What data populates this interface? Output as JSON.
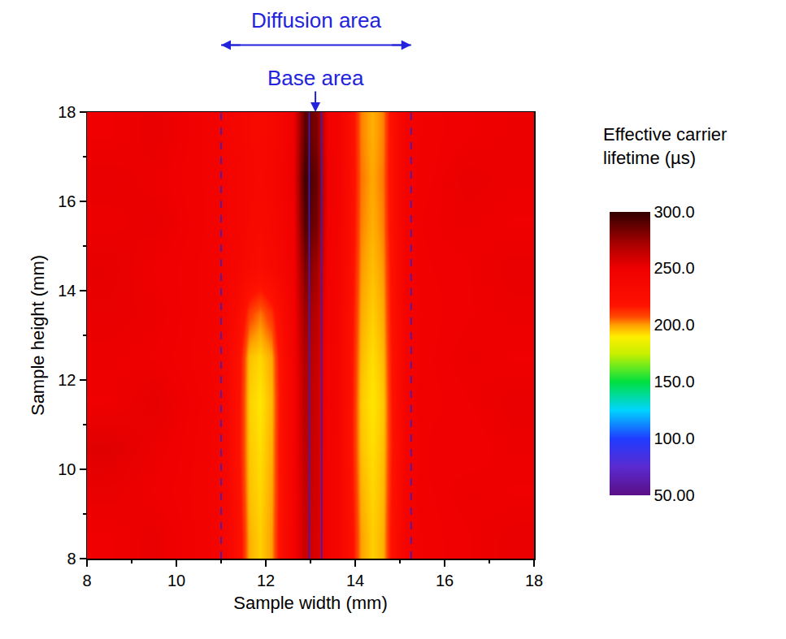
{
  "chart_data": {
    "type": "heatmap",
    "x_label": "Sample width (mm)",
    "y_label": "Sample height (mm)",
    "xlim": [
      8,
      18
    ],
    "xticks": [
      8,
      10,
      12,
      14,
      16,
      18
    ],
    "ylim": [
      8,
      18
    ],
    "yticks": [
      8,
      10,
      12,
      14,
      16,
      18
    ],
    "x_edges": [
      8,
      9,
      10,
      10.5,
      11,
      11.25,
      11.5,
      11.75,
      12,
      12.25,
      12.5,
      12.75,
      13,
      13.25,
      13.5,
      13.75,
      14,
      14.25,
      14.5,
      14.75,
      15,
      15.25,
      15.5,
      16,
      17,
      18
    ],
    "y_edges": [
      8,
      9,
      10,
      11,
      12,
      13,
      14,
      15,
      16,
      17,
      18
    ],
    "z": [
      [
        250,
        252,
        248,
        244,
        238,
        225,
        198,
        194,
        200,
        228,
        246,
        262,
        258,
        246,
        240,
        226,
        200,
        194,
        198,
        226,
        242,
        246,
        248,
        250,
        252
      ],
      [
        252,
        250,
        247,
        243,
        239,
        222,
        196,
        193,
        199,
        226,
        245,
        264,
        260,
        245,
        241,
        224,
        198,
        193,
        197,
        224,
        243,
        247,
        249,
        251,
        250
      ],
      [
        255,
        251,
        248,
        244,
        238,
        220,
        195,
        192,
        198,
        227,
        246,
        266,
        261,
        246,
        240,
        222,
        196,
        192,
        196,
        222,
        242,
        246,
        250,
        249,
        251
      ],
      [
        250,
        253,
        249,
        245,
        239,
        221,
        194,
        191,
        197,
        226,
        245,
        268,
        262,
        247,
        241,
        223,
        195,
        191,
        195,
        223,
        243,
        247,
        248,
        250,
        252
      ],
      [
        251,
        250,
        247,
        244,
        238,
        222,
        196,
        193,
        199,
        227,
        246,
        270,
        264,
        246,
        240,
        224,
        197,
        192,
        197,
        224,
        242,
        246,
        249,
        251,
        250
      ],
      [
        252,
        251,
        248,
        245,
        240,
        230,
        210,
        204,
        212,
        232,
        247,
        275,
        268,
        247,
        241,
        225,
        199,
        194,
        199,
        225,
        243,
        246,
        248,
        250,
        251
      ],
      [
        253,
        250,
        248,
        245,
        241,
        238,
        232,
        228,
        234,
        240,
        248,
        282,
        274,
        248,
        242,
        227,
        201,
        196,
        201,
        226,
        244,
        247,
        249,
        250,
        252
      ],
      [
        251,
        252,
        249,
        246,
        242,
        240,
        236,
        233,
        237,
        242,
        250,
        292,
        284,
        249,
        243,
        228,
        203,
        198,
        203,
        228,
        244,
        248,
        250,
        251,
        250
      ],
      [
        252,
        251,
        248,
        246,
        242,
        240,
        237,
        235,
        238,
        243,
        252,
        296,
        288,
        250,
        244,
        229,
        204,
        199,
        204,
        229,
        245,
        247,
        249,
        252,
        251
      ],
      [
        250,
        252,
        249,
        245,
        241,
        239,
        236,
        234,
        237,
        242,
        251,
        290,
        282,
        249,
        243,
        228,
        203,
        198,
        203,
        228,
        244,
        246,
        248,
        250,
        251
      ]
    ],
    "colorbar": {
      "title": "Effective carrier lifetime (µs)",
      "zlim": [
        50,
        300
      ],
      "zticks": [
        {
          "value": 50,
          "label": "50.00"
        },
        {
          "value": 100,
          "label": "100.0"
        },
        {
          "value": 150,
          "label": "150.0"
        },
        {
          "value": 200,
          "label": "200.0"
        },
        {
          "value": 250,
          "label": "250.0"
        },
        {
          "value": 300,
          "label": "300.0"
        }
      ]
    },
    "regions": [
      {
        "label": "Diffusion area",
        "x0": 11,
        "x1": 15.25,
        "line_style": "dashed",
        "marker": "double_arrow"
      },
      {
        "label": "Base area",
        "x0": 12.97,
        "x1": 13.25,
        "line_style": "solid",
        "marker": "down_arrow"
      }
    ]
  }
}
